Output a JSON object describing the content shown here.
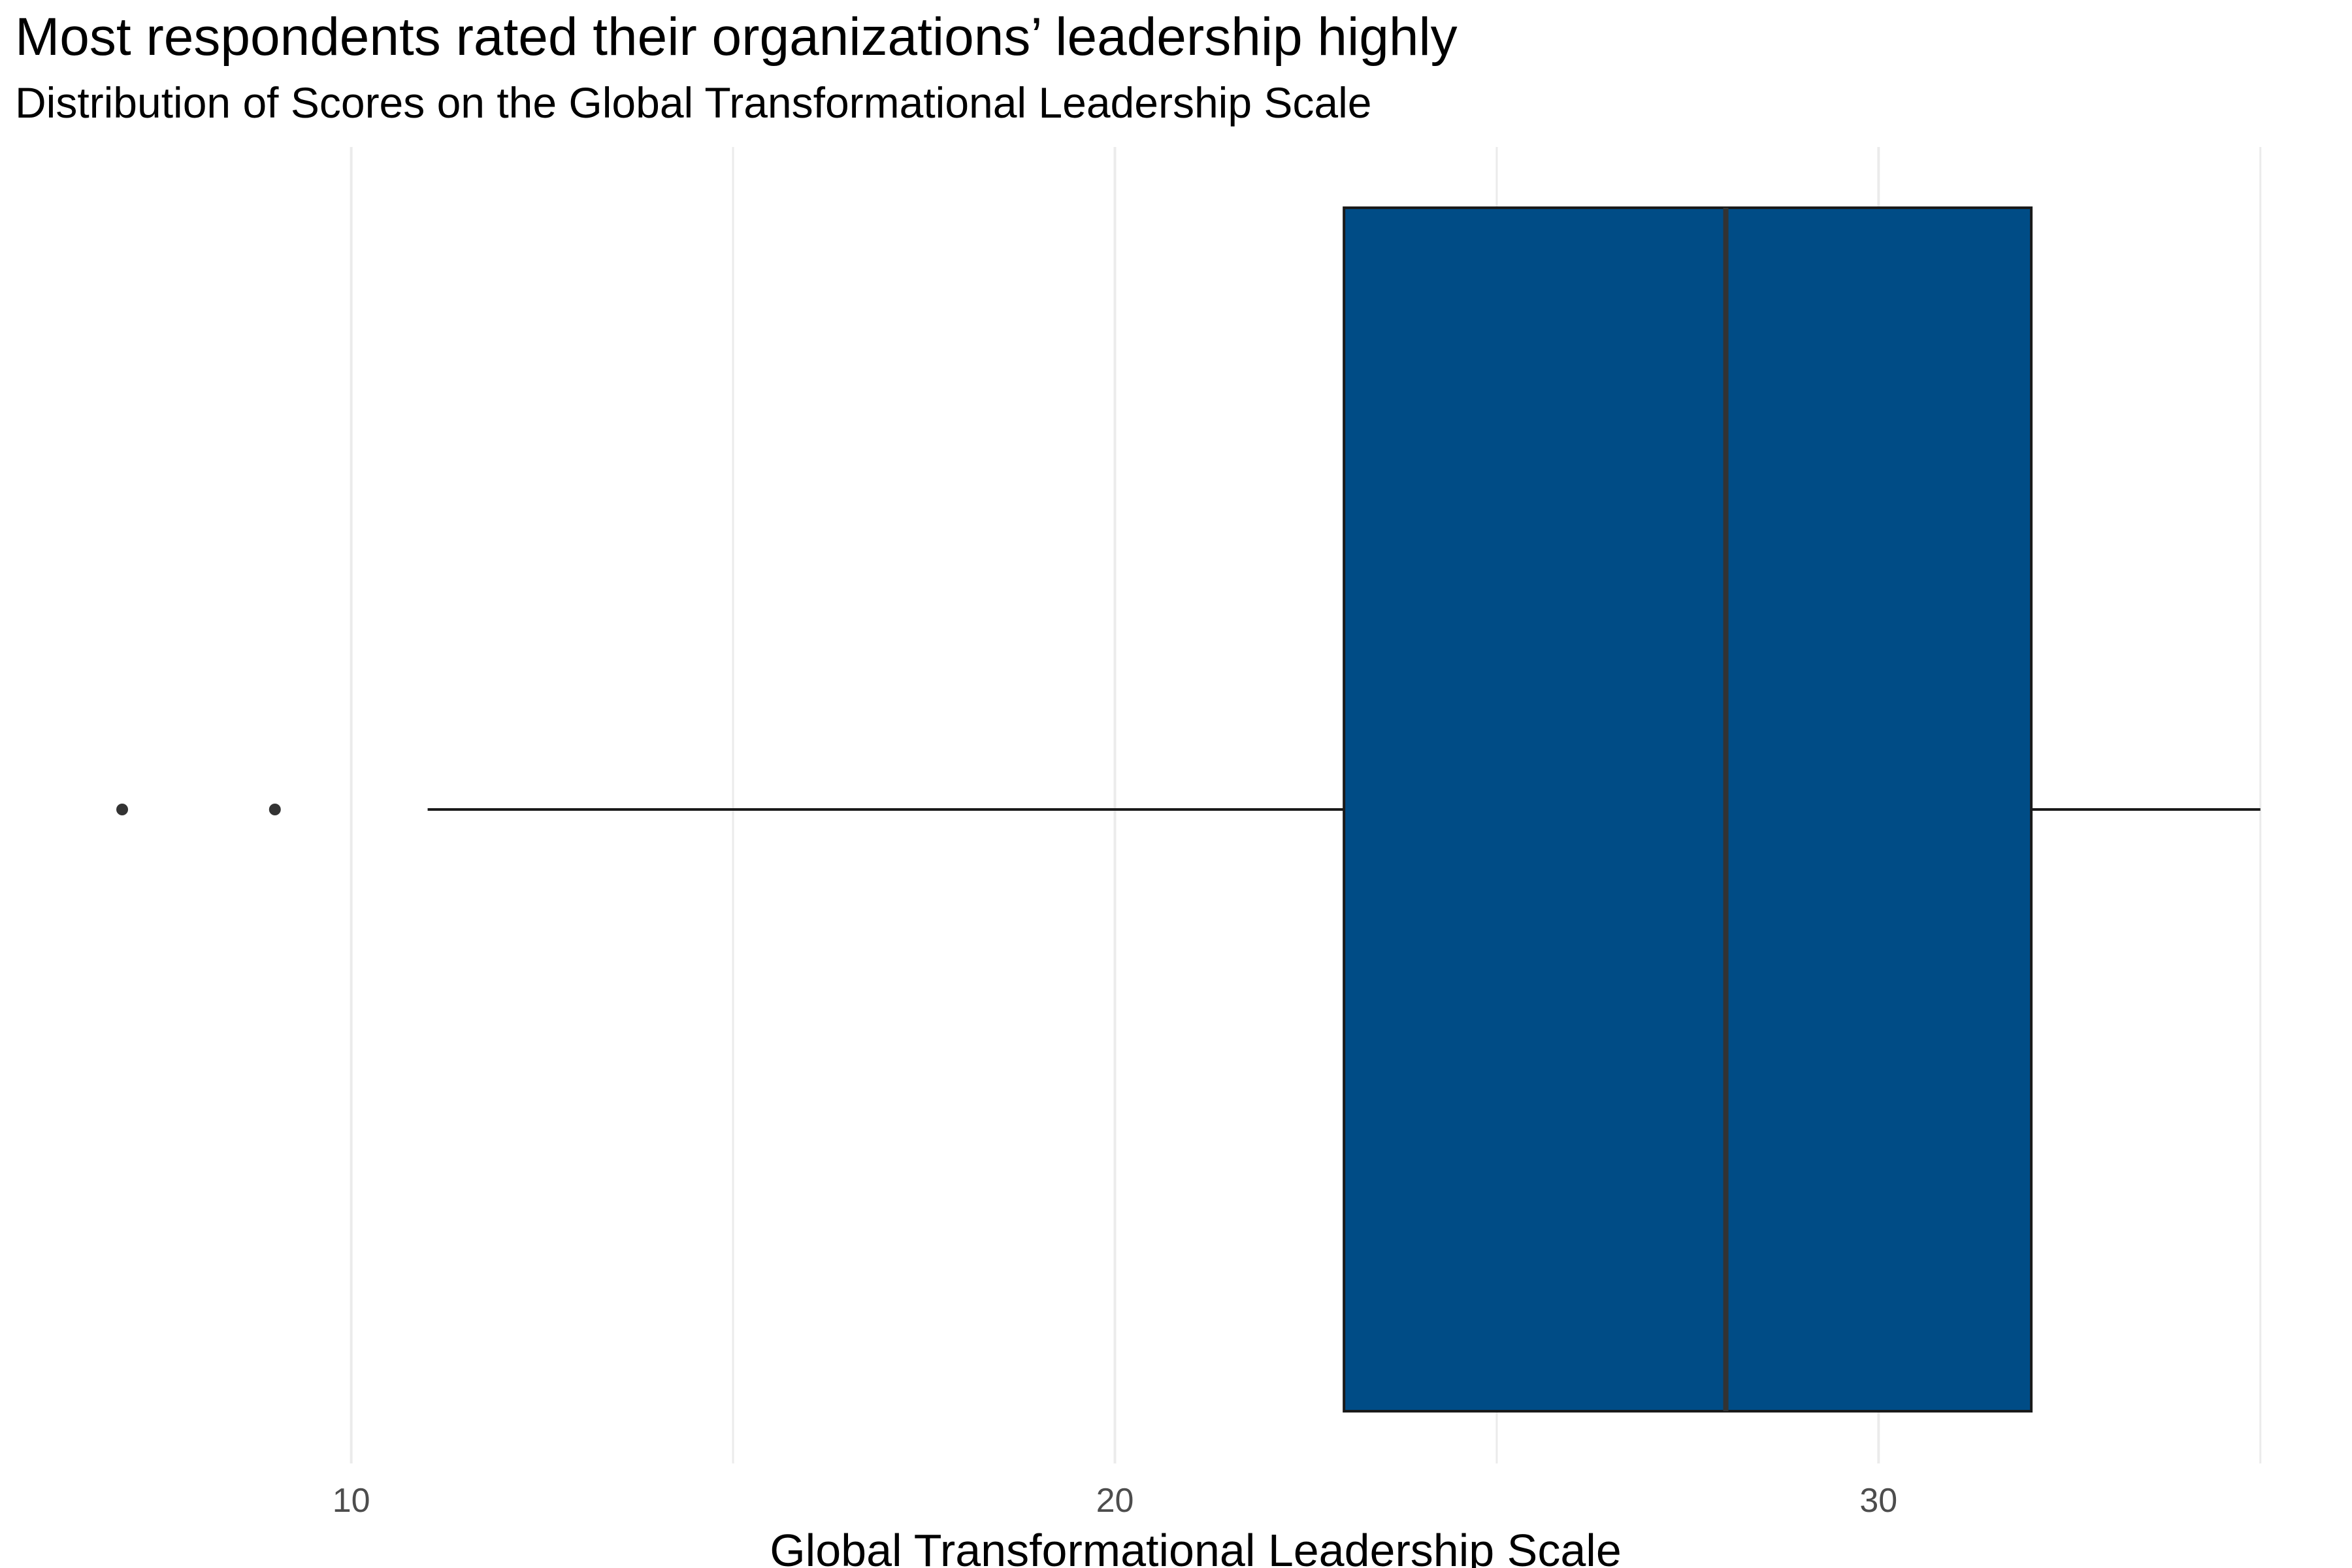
{
  "chart_data": {
    "type": "boxplot",
    "title": "Most respondents rated their organizations’ leadership highly",
    "subtitle": "Distribution of Scores on the Global Transformational Leadership Scale",
    "xlabel": "Global Transformational Leadership Scale",
    "ylabel": "",
    "xlim": [
      5.4,
      36.2
    ],
    "x_ticks": [
      10,
      20,
      30
    ],
    "x_tick_labels": [
      "10",
      "20",
      "30"
    ],
    "minor_gridlines": [
      15,
      25,
      35
    ],
    "grid": true,
    "box": {
      "whisker_low": 11,
      "q1": 23,
      "median": 28,
      "q3": 32,
      "whisker_high": 35
    },
    "outliers": [
      7,
      9
    ],
    "colors": {
      "box_fill": "#004c86",
      "box_stroke": "#1a1a1a",
      "median": "#333333",
      "whisker": "#1a1a1a",
      "outlier": "#333333",
      "grid": "#ebebeb",
      "tick_label": "#4d4d4d"
    }
  }
}
